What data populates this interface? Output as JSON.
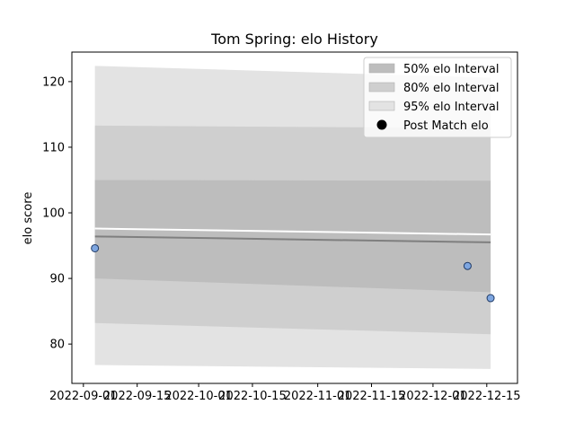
{
  "chart_data": {
    "type": "line",
    "title": "Tom Spring: elo History",
    "xlabel": "",
    "ylabel": "elo score",
    "xlim": [
      "2022-08-29",
      "2022-12-23"
    ],
    "ylim": [
      74,
      124.5
    ],
    "x_ticks": [
      "2022-09-01",
      "2022-09-15",
      "2022-10-01",
      "2022-10-15",
      "2022-11-01",
      "2022-11-15",
      "2022-12-01",
      "2022-12-15"
    ],
    "y_ticks": [
      80,
      90,
      100,
      110,
      120
    ],
    "bands": {
      "x": [
        "2022-09-04",
        "2022-12-16"
      ],
      "band_95": {
        "label": "95% elo Interval",
        "color": "#e3e3e3",
        "upper": [
          122.4,
          120.6
        ],
        "lower": [
          76.8,
          76.2
        ]
      },
      "band_80": {
        "label": "80% elo Interval",
        "color": "#cfcfcf",
        "upper": [
          113.3,
          112.9
        ],
        "lower": [
          83.2,
          81.5
        ]
      },
      "band_50": {
        "label": "50% elo Interval",
        "color": "#bdbdbd",
        "upper": [
          105.0,
          104.9
        ],
        "lower": [
          90.0,
          87.9
        ]
      }
    },
    "series": [
      {
        "x": [
          "2022-09-04",
          "2022-12-16"
        ],
        "values": [
          96.4,
          95.5
        ],
        "color": "#7f7f7f"
      },
      {
        "x": [
          "2022-09-04",
          "2022-12-16"
        ],
        "values": [
          97.6,
          96.7
        ],
        "color": "#ffffff"
      }
    ],
    "points": {
      "label": "Post Match elo",
      "x": [
        "2022-09-04",
        "2022-12-10",
        "2022-12-16"
      ],
      "values": [
        94.6,
        91.9,
        87.0
      ],
      "color": "#7ea6e0"
    },
    "legend": {
      "position": "top-right",
      "entries": [
        "50% elo Interval",
        "80% elo Interval",
        "95% elo Interval",
        "Post Match elo"
      ]
    },
    "grid": false
  }
}
